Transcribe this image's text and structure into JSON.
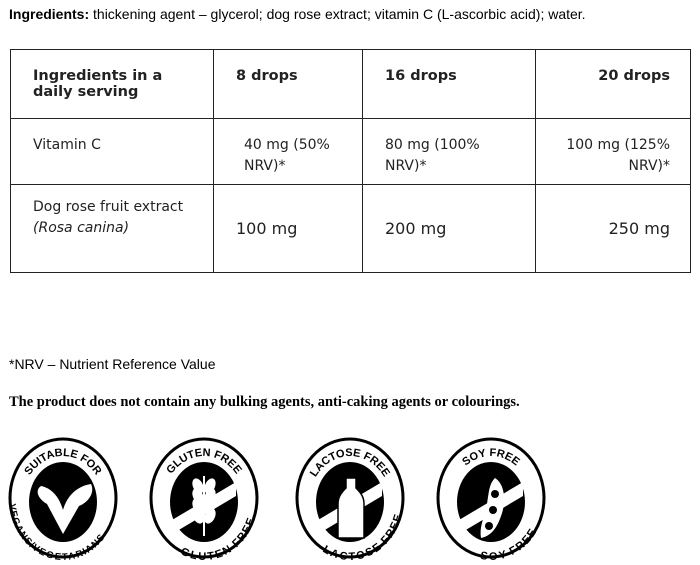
{
  "ingredients_line": {
    "label": "Ingredients:",
    "text": " thickening agent – glycerol; dog rose extract; vitamin C (L-ascorbic acid); water."
  },
  "table": {
    "headers": [
      "Ingredients in a daily serving",
      "8 drops",
      "16 drops",
      "20 drops"
    ],
    "rows": [
      {
        "name": "Vitamin C",
        "name_italic": "",
        "values": [
          "40 mg  (50% NRV)*",
          "80 mg  (100% NRV)*",
          "100 mg (125% NRV)*"
        ]
      },
      {
        "name": "Dog rose fruit extract ",
        "name_italic": "(Rosa canina)",
        "values": [
          "100 mg",
          "200 mg",
          "250 mg"
        ]
      }
    ]
  },
  "footnote": "*NRV – Nutrient Reference Value",
  "statement": "The product does not contain any bulking agents, anti-caking agents or colourings.",
  "badges": [
    {
      "icon": "vegan-leaf-icon",
      "top": "SUITABLE FOR",
      "bottom": "VEGANS/VEGETARIANS"
    },
    {
      "icon": "wheat-icon",
      "top": "GLUTEN FREE",
      "bottom": "GLUTEN FREE"
    },
    {
      "icon": "milk-bottle-icon",
      "top": "LACTOSE FREE",
      "bottom": "LACTOSE FREE"
    },
    {
      "icon": "soybean-icon",
      "top": "SOY FREE",
      "bottom": "SOY FREE"
    }
  ]
}
